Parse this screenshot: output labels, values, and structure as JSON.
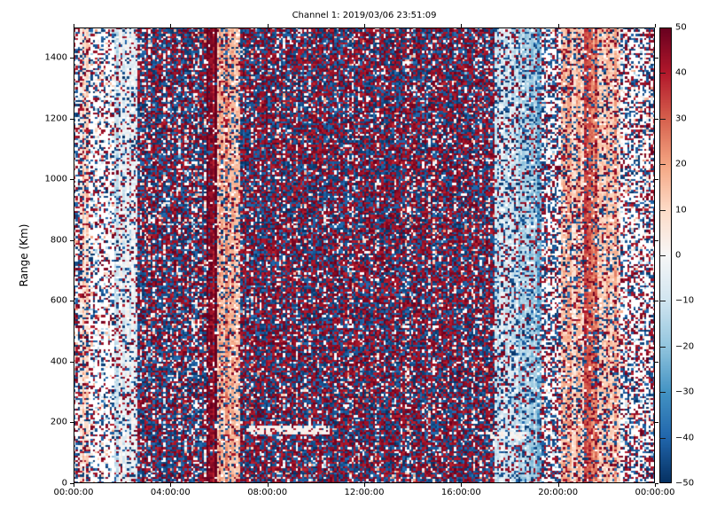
{
  "figure": {
    "title": "Channel 1: 2019/03/06 23:51:09",
    "ylabel": "Range (Km)"
  },
  "chart_data": {
    "type": "heatmap",
    "title": "Channel 1: 2019/03/06 23:51:09",
    "xlabel": "",
    "ylabel": "Range (Km)",
    "x_tick_labels": [
      "00:00:00",
      "04:00:00",
      "08:00:00",
      "12:00:00",
      "16:00:00",
      "20:00:00",
      "00:00:00"
    ],
    "x_tick_hours": [
      0,
      4,
      8,
      12,
      16,
      20,
      24
    ],
    "x_range_hours": [
      0,
      24
    ],
    "y_tick_values": [
      0,
      200,
      400,
      600,
      800,
      1000,
      1200,
      1400
    ],
    "y_range_km": [
      0,
      1500
    ],
    "legend_position": "right-colorbar",
    "grid": {
      "nx": 272,
      "ny": 214,
      "seed": 1337
    },
    "colorbar": {
      "min": -50,
      "max": 50,
      "tick_values": [
        50,
        40,
        30,
        20,
        10,
        0,
        -10,
        -20,
        -30,
        -40,
        -50
      ],
      "tick_labels": [
        "50",
        "40",
        "30",
        "20",
        "10",
        "0",
        "−10",
        "−20",
        "−30",
        "−40",
        "−50"
      ],
      "colormap": "RdBu_r",
      "colormap_stops": [
        "#053061",
        "#2166ac",
        "#4393c3",
        "#92c5de",
        "#d1e5f0",
        "#f7f7f7",
        "#fddbc7",
        "#f4a582",
        "#d6604d",
        "#b2182b",
        "#67001f"
      ]
    },
    "bands": [
      {
        "h0": 0.0,
        "h1": 0.25,
        "kind": "sparse",
        "density": 0.55
      },
      {
        "h0": 0.25,
        "h1": 0.6,
        "kind": "tint",
        "bg": 9,
        "density": 0.35
      },
      {
        "h0": 0.6,
        "h1": 1.7,
        "kind": "sparse",
        "density": 0.3
      },
      {
        "h0": 1.7,
        "h1": 2.65,
        "kind": "tint",
        "bg": -6,
        "density": 0.25
      },
      {
        "h0": 2.65,
        "h1": 5.5,
        "kind": "dense",
        "density": 0.85,
        "redFrac": 0.5
      },
      {
        "h0": 5.5,
        "h1": 5.95,
        "kind": "stripe",
        "bg": 47,
        "density": 0.1,
        "redFrac": 0.25
      },
      {
        "h0": 5.95,
        "h1": 6.9,
        "kind": "tint",
        "bg": 18,
        "density": 0.3,
        "redFrac": 0.45
      },
      {
        "h0": 6.9,
        "h1": 17.35,
        "kind": "dense",
        "density": 0.88,
        "redFrac": 0.55
      },
      {
        "h0": 17.35,
        "h1": 18.35,
        "kind": "tint",
        "bg": -13,
        "density": 0.36,
        "redFrac": 0.42
      },
      {
        "h0": 18.35,
        "h1": 19.35,
        "kind": "tint",
        "bg": -20,
        "density": 0.34,
        "redFrac": 0.4
      },
      {
        "h0": 19.35,
        "h1": 20.1,
        "kind": "sparse",
        "density": 0.5
      },
      {
        "h0": 20.1,
        "h1": 21.1,
        "kind": "tint",
        "bg": 14,
        "density": 0.33
      },
      {
        "h0": 21.1,
        "h1": 21.6,
        "kind": "tint",
        "bg": 30,
        "density": 0.3,
        "redFrac": 0.6
      },
      {
        "h0": 21.6,
        "h1": 22.6,
        "kind": "tint",
        "bg": 13,
        "density": 0.33
      },
      {
        "h0": 22.6,
        "h1": 23.7,
        "kind": "sparse",
        "density": 0.42
      },
      {
        "h0": 23.7,
        "h1": 24.01,
        "kind": "sparse",
        "density": 0.6
      }
    ],
    "streaks": [
      {
        "h0": 7.2,
        "h1": 10.6,
        "km0": 160,
        "km1": 186,
        "p": 0.8
      },
      {
        "h0": 17.25,
        "h1": 18.7,
        "km0": 145,
        "km1": 170,
        "p": 0.75
      }
    ]
  },
  "layout_colors": {
    "axes_edge": "#000000",
    "background": "#ffffff",
    "strong_red": "#67001f",
    "strong_blue": "#053061"
  }
}
